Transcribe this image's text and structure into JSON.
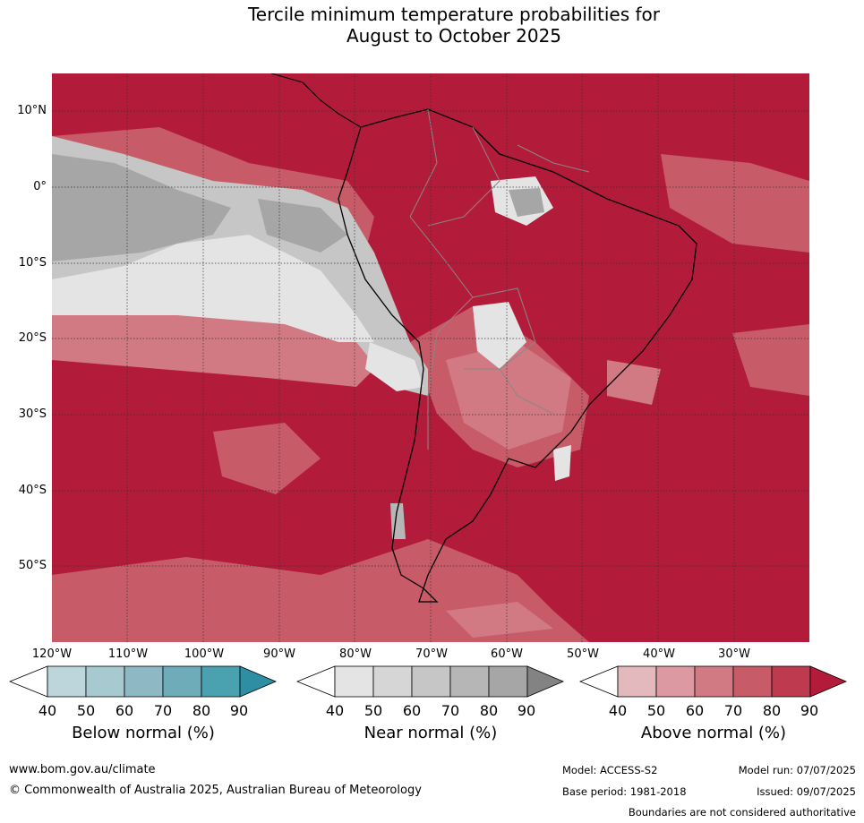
{
  "title": {
    "line1": "Tercile minimum temperature probabilities for",
    "line2": "August to October 2025"
  },
  "map": {
    "lat_labels": [
      "10°N",
      "0°",
      "10°S",
      "20°S",
      "30°S",
      "40°S",
      "50°S"
    ],
    "lon_labels": [
      "120°W",
      "110°W",
      "100°W",
      "90°W",
      "80°W",
      "70°W",
      "60°W",
      "50°W",
      "40°W",
      "30°W"
    ]
  },
  "colorbars": [
    {
      "label": "Below normal (%)",
      "ticks": [
        "40",
        "50",
        "60",
        "70",
        "80",
        "90"
      ],
      "colors": [
        "#ffffff",
        "#bcd6dc",
        "#a7c9d0",
        "#8eb9c4",
        "#6eacba",
        "#4aa1b0",
        "#2e8fa4"
      ]
    },
    {
      "label": "Near normal (%)",
      "ticks": [
        "40",
        "50",
        "60",
        "70",
        "80",
        "90"
      ],
      "colors": [
        "#ffffff",
        "#e4e4e4",
        "#d6d6d6",
        "#c6c6c6",
        "#b6b6b6",
        "#a6a6a6",
        "#838383"
      ]
    },
    {
      "label": "Above normal (%)",
      "ticks": [
        "40",
        "50",
        "60",
        "70",
        "80",
        "90"
      ],
      "colors": [
        "#ffffff",
        "#e4b9bd",
        "#dc99a1",
        "#d17a84",
        "#c75b68",
        "#bd3a4f",
        "#b31b3b"
      ]
    }
  ],
  "footer": {
    "url": "www.bom.gov.au/climate",
    "copyright": "© Commonwealth of Australia 2025, Australian Bureau of Meteorology",
    "model": "Model: ACCESS-S2",
    "model_run": "Model run: 07/07/2025",
    "base_period": "Base period: 1981-2018",
    "issued": "Issued: 09/07/2025",
    "boundaries": "Boundaries are not considered authoritative"
  }
}
